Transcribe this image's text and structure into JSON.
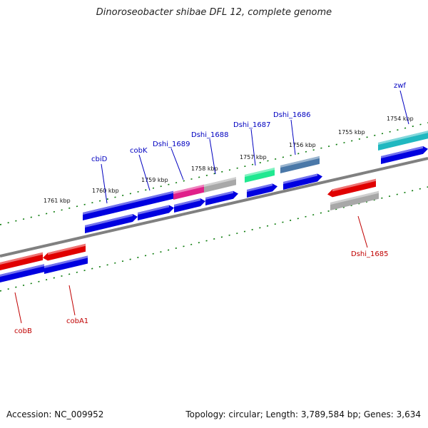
{
  "title": "Dinoroseobacter shibae DFL 12, complete genome",
  "footer": {
    "accession": "Accession: NC_009952",
    "summary": "Topology: circular; Length: 3,789,584 bp; Genes: 3,634"
  },
  "colors": {
    "backbone": "#808080",
    "cds_blue": "#0000e0",
    "rna_red": "#e00000",
    "gray_feature": "#a8a8a8",
    "magenta_feature": "#e0208a",
    "green_feature": "#20e890",
    "steelblue_feature": "#4a78a8",
    "teal_feature": "#20b8c0",
    "tick_green": "#0a7a0a",
    "label_blue": "#0000c0",
    "label_red": "#c00000"
  },
  "tick_labels": [
    {
      "text": "1761 kbp",
      "kbp": 1761
    },
    {
      "text": "1760 kbp",
      "kbp": 1760
    },
    {
      "text": "1759 kbp",
      "kbp": 1759
    },
    {
      "text": "1758 kbp",
      "kbp": 1758
    },
    {
      "text": "1757 kbp",
      "kbp": 1757
    },
    {
      "text": "1756 kbp",
      "kbp": 1756
    },
    {
      "text": "1755 kbp",
      "kbp": 1755
    },
    {
      "text": "1754 kbp",
      "kbp": 1754
    }
  ],
  "gene_labels": [
    {
      "text": "cbiD",
      "strand": "forward"
    },
    {
      "text": "cobK",
      "strand": "forward"
    },
    {
      "text": "Dshi_1689",
      "strand": "forward"
    },
    {
      "text": "Dshi_1688",
      "strand": "forward"
    },
    {
      "text": "Dshi_1687",
      "strand": "forward"
    },
    {
      "text": "Dshi_1686",
      "strand": "forward"
    },
    {
      "text": "zwf",
      "strand": "forward"
    },
    {
      "text": "Dshi_1685",
      "strand": "reverse"
    },
    {
      "text": "cobB",
      "strand": "reverse"
    },
    {
      "text": "cobA1",
      "strand": "reverse"
    }
  ]
}
